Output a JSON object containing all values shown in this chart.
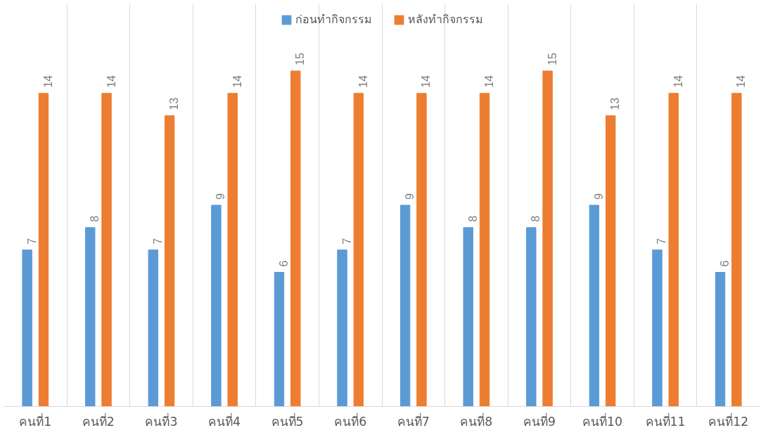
{
  "chart_data": {
    "type": "bar",
    "categories": [
      "คนที่1",
      "คนที่2",
      "คนที่3",
      "คนที่4",
      "คนที่5",
      "คนที่6",
      "คนที่7",
      "คนที่8",
      "คนที่9",
      "คนที่10",
      "คนที่11",
      "คนที่12"
    ],
    "series": [
      {
        "name": "ก่อนทำกิจกรรม",
        "color": "#5b9bd5",
        "values": [
          7,
          8,
          7,
          9,
          6,
          7,
          9,
          8,
          8,
          9,
          7,
          6
        ]
      },
      {
        "name": "หลังทำกิจกรรม",
        "color": "#ed7d31",
        "values": [
          14,
          14,
          13,
          14,
          15,
          14,
          14,
          14,
          15,
          13,
          14,
          14
        ]
      }
    ],
    "data_labels": true,
    "grid": "x",
    "legend": "top",
    "tick_labels": "x"
  }
}
